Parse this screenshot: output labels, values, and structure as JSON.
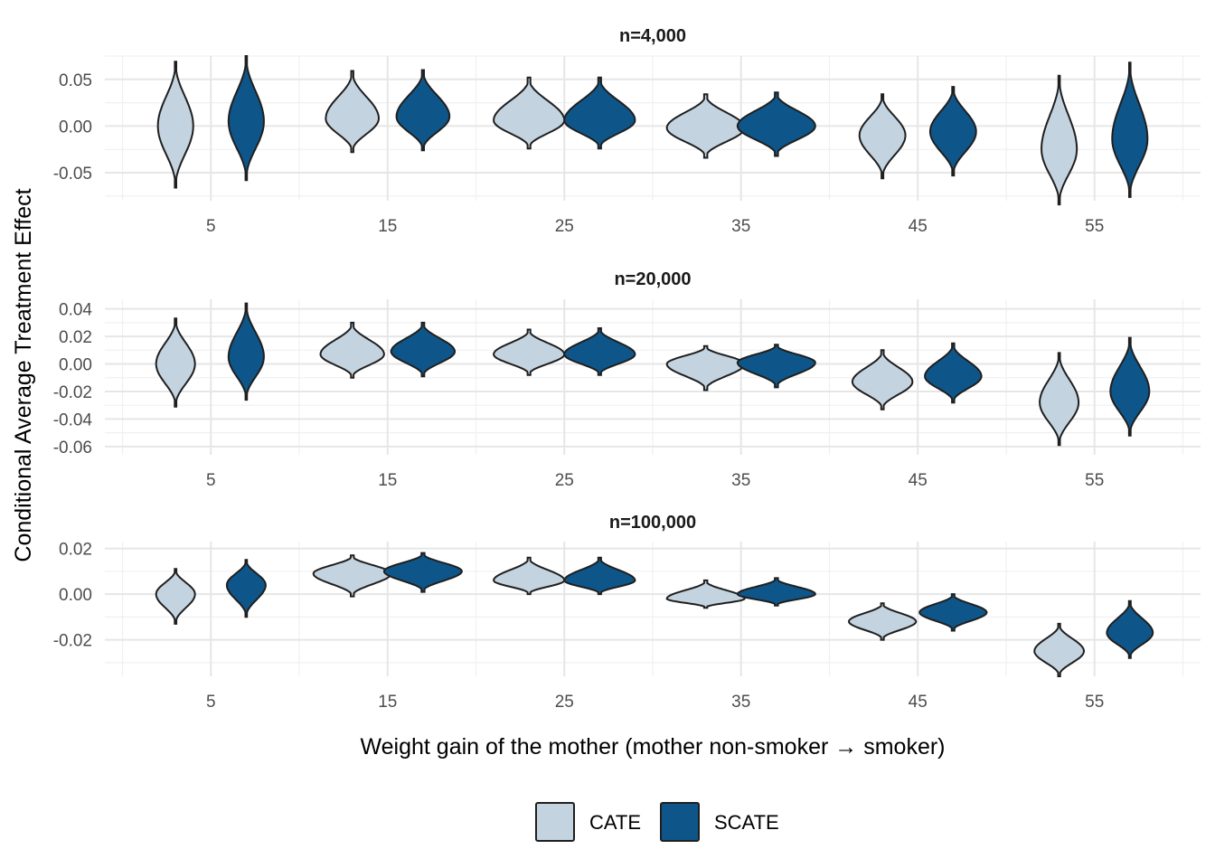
{
  "chart_data": {
    "type": "violin",
    "xlabel": "Weight gain of the mother (mother non-smoker → smoker)",
    "ylabel": "Conditional Average Treatment Effect",
    "xlim": [
      -1,
      61
    ],
    "xticks": [
      5,
      15,
      25,
      35,
      45,
      55
    ],
    "legend": {
      "position": "bottom",
      "entries": [
        {
          "name": "CATE",
          "color": "#c3d4e0"
        },
        {
          "name": "SCATE",
          "color": "#0e568a"
        }
      ]
    },
    "panels": [
      {
        "title": "n=4,000",
        "ylim": [
          -0.08,
          0.075
        ],
        "yticks": [
          -0.05,
          0.0,
          0.05
        ],
        "ytick_labels": [
          "-0.05",
          "0.00",
          "0.05"
        ],
        "groups": [
          {
            "x": 5,
            "CATE": {
              "center": 0.0,
              "min": -0.066,
              "max": 0.069,
              "halfwidth": 1.0
            },
            "SCATE": {
              "center": 0.005,
              "min": -0.058,
              "max": 0.075,
              "halfwidth": 1.0
            }
          },
          {
            "x": 15,
            "CATE": {
              "center": 0.008,
              "min": -0.028,
              "max": 0.059,
              "halfwidth": 1.5
            },
            "SCATE": {
              "center": 0.01,
              "min": -0.026,
              "max": 0.06,
              "halfwidth": 1.5
            }
          },
          {
            "x": 25,
            "CATE": {
              "center": 0.006,
              "min": -0.024,
              "max": 0.052,
              "halfwidth": 2.0
            },
            "SCATE": {
              "center": 0.006,
              "min": -0.024,
              "max": 0.052,
              "halfwidth": 2.0
            }
          },
          {
            "x": 35,
            "CATE": {
              "center": -0.002,
              "min": -0.034,
              "max": 0.034,
              "halfwidth": 2.2
            },
            "SCATE": {
              "center": 0.0,
              "min": -0.032,
              "max": 0.036,
              "halfwidth": 2.2
            }
          },
          {
            "x": 45,
            "CATE": {
              "center": -0.01,
              "min": -0.056,
              "max": 0.034,
              "halfwidth": 1.3
            },
            "SCATE": {
              "center": -0.006,
              "min": -0.053,
              "max": 0.042,
              "halfwidth": 1.3
            }
          },
          {
            "x": 55,
            "CATE": {
              "center": -0.025,
              "min": -0.084,
              "max": 0.054,
              "halfwidth": 1.0
            },
            "SCATE": {
              "center": -0.014,
              "min": -0.076,
              "max": 0.068,
              "halfwidth": 1.0
            }
          }
        ]
      },
      {
        "title": "n=20,000",
        "ylim": [
          -0.066,
          0.047
        ],
        "yticks": [
          -0.06,
          -0.04,
          -0.02,
          0.0,
          0.02,
          0.04
        ],
        "ytick_labels": [
          "-0.06",
          "-0.04",
          "-0.02",
          "0.00",
          "0.02",
          "0.04"
        ],
        "groups": [
          {
            "x": 5,
            "CATE": {
              "center": 0.0,
              "min": -0.031,
              "max": 0.033,
              "halfwidth": 1.1
            },
            "SCATE": {
              "center": 0.005,
              "min": -0.026,
              "max": 0.044,
              "halfwidth": 1.0
            }
          },
          {
            "x": 15,
            "CATE": {
              "center": 0.007,
              "min": -0.01,
              "max": 0.03,
              "halfwidth": 1.8
            },
            "SCATE": {
              "center": 0.009,
              "min": -0.009,
              "max": 0.03,
              "halfwidth": 1.8
            }
          },
          {
            "x": 25,
            "CATE": {
              "center": 0.007,
              "min": -0.008,
              "max": 0.025,
              "halfwidth": 2.0
            },
            "SCATE": {
              "center": 0.007,
              "min": -0.008,
              "max": 0.026,
              "halfwidth": 2.0
            }
          },
          {
            "x": 35,
            "CATE": {
              "center": 0.0,
              "min": -0.019,
              "max": 0.013,
              "halfwidth": 2.2
            },
            "SCATE": {
              "center": 0.001,
              "min": -0.017,
              "max": 0.014,
              "halfwidth": 2.2
            }
          },
          {
            "x": 45,
            "CATE": {
              "center": -0.013,
              "min": -0.033,
              "max": 0.01,
              "halfwidth": 1.7
            },
            "SCATE": {
              "center": -0.009,
              "min": -0.028,
              "max": 0.015,
              "halfwidth": 1.6
            }
          },
          {
            "x": 55,
            "CATE": {
              "center": -0.028,
              "min": -0.059,
              "max": 0.008,
              "halfwidth": 1.1
            },
            "SCATE": {
              "center": -0.02,
              "min": -0.052,
              "max": 0.019,
              "halfwidth": 1.1
            }
          }
        ]
      },
      {
        "title": "n=100,000",
        "ylim": [
          -0.036,
          0.023
        ],
        "yticks": [
          -0.02,
          0.0,
          0.02
        ],
        "ytick_labels": [
          "-0.02",
          "0.00",
          "0.02"
        ],
        "groups": [
          {
            "x": 5,
            "CATE": {
              "center": 0.0,
              "min": -0.013,
              "max": 0.011,
              "halfwidth": 1.1
            },
            "SCATE": {
              "center": 0.004,
              "min": -0.01,
              "max": 0.015,
              "halfwidth": 1.1
            }
          },
          {
            "x": 15,
            "CATE": {
              "center": 0.009,
              "min": -0.001,
              "max": 0.017,
              "halfwidth": 2.2
            },
            "SCATE": {
              "center": 0.01,
              "min": 0.001,
              "max": 0.018,
              "halfwidth": 2.2
            }
          },
          {
            "x": 25,
            "CATE": {
              "center": 0.006,
              "min": 0.0,
              "max": 0.016,
              "halfwidth": 2.0
            },
            "SCATE": {
              "center": 0.006,
              "min": 0.0,
              "max": 0.016,
              "halfwidth": 2.0
            }
          },
          {
            "x": 35,
            "CATE": {
              "center": -0.002,
              "min": -0.006,
              "max": 0.006,
              "halfwidth": 2.2
            },
            "SCATE": {
              "center": 0.0,
              "min": -0.005,
              "max": 0.007,
              "halfwidth": 2.2
            }
          },
          {
            "x": 45,
            "CATE": {
              "center": -0.012,
              "min": -0.02,
              "max": -0.004,
              "halfwidth": 1.9
            },
            "SCATE": {
              "center": -0.008,
              "min": -0.016,
              "max": 0.0,
              "halfwidth": 1.9
            }
          },
          {
            "x": 55,
            "CATE": {
              "center": -0.025,
              "min": -0.036,
              "max": -0.013,
              "halfwidth": 1.4
            },
            "SCATE": {
              "center": -0.017,
              "min": -0.028,
              "max": -0.003,
              "halfwidth": 1.3
            }
          }
        ]
      }
    ]
  }
}
